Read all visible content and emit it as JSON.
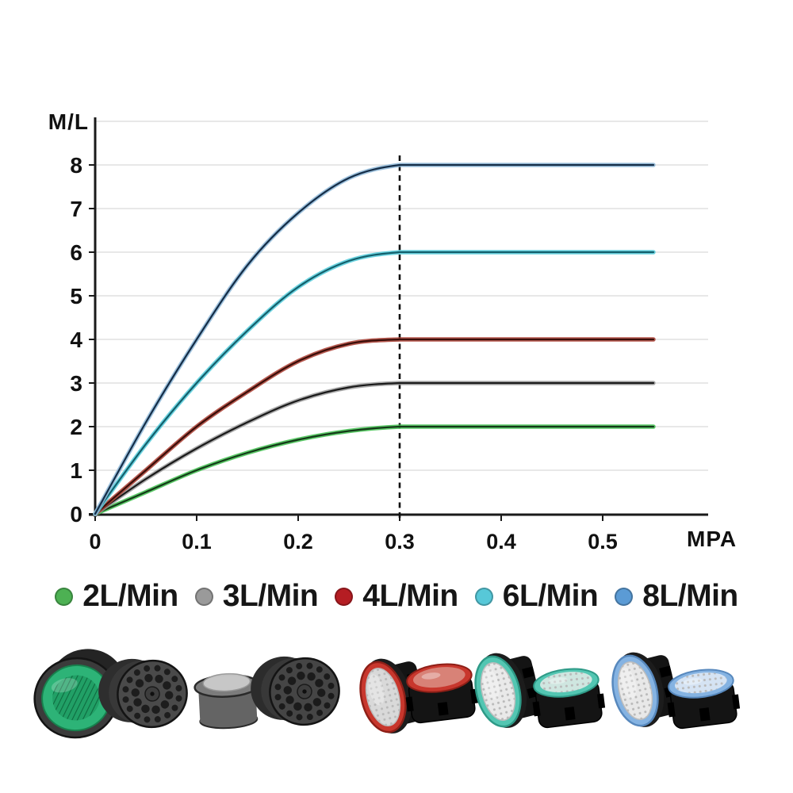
{
  "page": {
    "background": "#ffffff"
  },
  "chart_data": {
    "type": "line",
    "title": "",
    "xlabel": "MPA",
    "ylabel": "M/L",
    "xlim": [
      0,
      0.55
    ],
    "ylim": [
      0,
      9
    ],
    "grid": "horizontal",
    "grid_levels": [
      1,
      2,
      3,
      4,
      5,
      6,
      7,
      8,
      9
    ],
    "gridline_color": "#d9d9d9",
    "axis_color": "#1a1a1a",
    "x_ticks": [
      0,
      0.1,
      0.2,
      0.3,
      0.4,
      0.5
    ],
    "x_tick_labels": [
      "0",
      "0.1",
      "0.2",
      "0.3",
      "0.4",
      "0.5"
    ],
    "y_ticks": [
      0,
      1,
      2,
      3,
      4,
      5,
      6,
      7,
      8
    ],
    "y_tick_labels": [
      "0",
      "1",
      "2",
      "3",
      "4",
      "5",
      "6",
      "7",
      "8"
    ],
    "annotation": {
      "type": "vline-dashed",
      "x": 0.3,
      "color": "#111111"
    },
    "legend_position": "bottom",
    "x": [
      0,
      0.05,
      0.1,
      0.15,
      0.2,
      0.25,
      0.3,
      0.35,
      0.4,
      0.45,
      0.5,
      0.55
    ],
    "series": [
      {
        "name": "2L/Min",
        "plateau": 2,
        "glow": "#3fbf4e",
        "core": "#143a18",
        "values": [
          0,
          0.5,
          1.0,
          1.4,
          1.7,
          1.9,
          2,
          2,
          2,
          2,
          2,
          2
        ]
      },
      {
        "name": "3L/Min",
        "plateau": 3,
        "glow": "#9b9b9b",
        "core": "#1a1a1a",
        "values": [
          0,
          0.8,
          1.5,
          2.1,
          2.6,
          2.9,
          3,
          3,
          3,
          3,
          3,
          3
        ]
      },
      {
        "name": "4L/Min",
        "plateau": 4,
        "glow": "#a93c30",
        "core": "#3a0e09",
        "values": [
          0,
          1.0,
          2.0,
          2.8,
          3.5,
          3.9,
          4,
          4,
          4,
          4,
          4,
          4
        ]
      },
      {
        "name": "6L/Min",
        "plateau": 6,
        "glow": "#52cbdb",
        "core": "#135f6b",
        "values": [
          0,
          1.6,
          3.0,
          4.2,
          5.2,
          5.8,
          6,
          6,
          6,
          6,
          6,
          6
        ]
      },
      {
        "name": "8L/Min",
        "plateau": 8,
        "glow": "#8fb8d8",
        "core": "#142d47",
        "values": [
          0,
          2.1,
          4.0,
          5.7,
          6.9,
          7.7,
          8,
          8,
          8,
          8,
          8,
          8
        ]
      }
    ]
  },
  "legend": {
    "items": [
      {
        "label": "2L/Min",
        "color": "#4db153"
      },
      {
        "label": "3L/Min",
        "color": "#9a9a9a"
      },
      {
        "label": "4L/Min",
        "color": "#b51d23"
      },
      {
        "label": "6L/Min",
        "color": "#57c8d8"
      },
      {
        "label": "8L/Min",
        "color": "#5b9bd5"
      }
    ]
  },
  "products": {
    "left_group": [
      {
        "name": "green-face-aerator",
        "view": "green-face",
        "rim": "#3b3b3b",
        "ring": "#2db377",
        "mesh": "#21a066",
        "hatch": "#0e6b40",
        "body": "#242424"
      },
      {
        "name": "back-view-aerator",
        "view": "back",
        "face": "#4a4a4a",
        "hole": "#1d1d1d",
        "body": "#2e2e2e"
      },
      {
        "name": "gray-cap-insert",
        "view": "cap",
        "body": "#646464",
        "top": "#7c7c7c",
        "dome": "#cccccc"
      },
      {
        "name": "back-view-aerator",
        "view": "back",
        "face": "#454545",
        "hole": "#1b1b1b",
        "body": "#2c2c2c"
      }
    ],
    "pairs": [
      {
        "name": "red-aerator-pair",
        "ring": "#c8372d",
        "ring_dark": "#8e1f17",
        "mesh": "#d9d9d9",
        "top": "#d88277",
        "top_mesh": false,
        "body": "#141414"
      },
      {
        "name": "teal-aerator-pair",
        "ring": "#53c6b2",
        "ring_dark": "#2e9a87",
        "mesh": "#e9e9e9",
        "top": "#cfe6e0",
        "top_mesh": true,
        "body": "#141414"
      },
      {
        "name": "blue-aerator-pair",
        "ring": "#85b3e2",
        "ring_dark": "#5788bd",
        "mesh": "#e8e8e8",
        "top": "#d5e3f3",
        "top_mesh": true,
        "body": "#141414"
      }
    ]
  }
}
